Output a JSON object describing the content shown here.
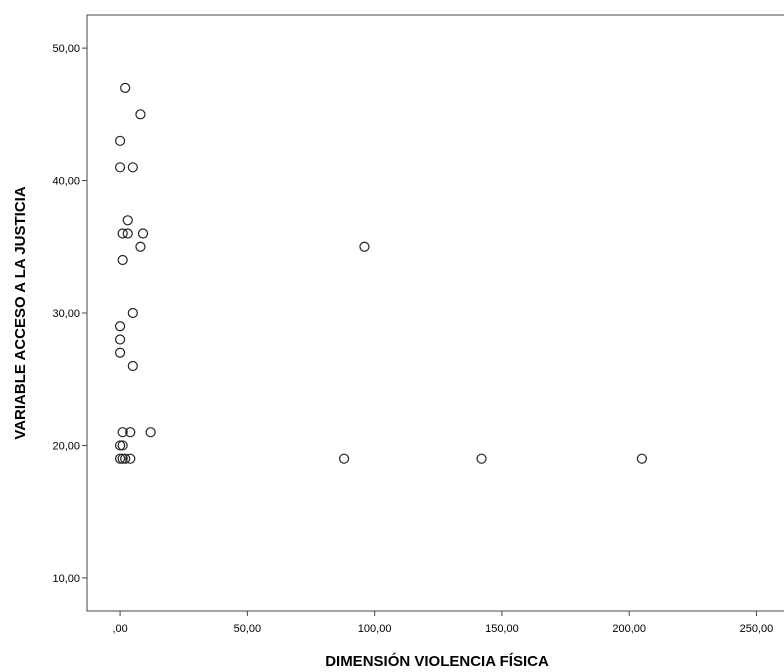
{
  "chart_data": {
    "type": "scatter",
    "xlabel": "DIMENSIÓN VIOLENCIA FÍSICA",
    "ylabel": "VARIABLE ACCESO A LA JUSTICIA",
    "xlim": [
      -13,
      262
    ],
    "ylim": [
      7.5,
      52.5
    ],
    "x_ticks": [
      0,
      50,
      100,
      150,
      200,
      250
    ],
    "x_tick_labels": [
      ",00",
      "50,00",
      "100,00",
      "150,00",
      "200,00",
      "250,00"
    ],
    "y_ticks": [
      10,
      20,
      30,
      40,
      50
    ],
    "y_tick_labels": [
      "10,00",
      "20,00",
      "30,00",
      "40,00",
      "50,00"
    ],
    "grid": false,
    "marker": "open-circle",
    "points": [
      {
        "x": 2,
        "y": 47
      },
      {
        "x": 8,
        "y": 45
      },
      {
        "x": 0,
        "y": 43
      },
      {
        "x": 0,
        "y": 41
      },
      {
        "x": 5,
        "y": 41
      },
      {
        "x": 3,
        "y": 37
      },
      {
        "x": 1,
        "y": 36
      },
      {
        "x": 3,
        "y": 36
      },
      {
        "x": 9,
        "y": 36
      },
      {
        "x": 8,
        "y": 35
      },
      {
        "x": 96,
        "y": 35
      },
      {
        "x": 1,
        "y": 34
      },
      {
        "x": 5,
        "y": 30
      },
      {
        "x": 0,
        "y": 29
      },
      {
        "x": 0,
        "y": 28
      },
      {
        "x": 0,
        "y": 27
      },
      {
        "x": 5,
        "y": 26
      },
      {
        "x": 1,
        "y": 21
      },
      {
        "x": 4,
        "y": 21
      },
      {
        "x": 12,
        "y": 21
      },
      {
        "x": 0,
        "y": 20
      },
      {
        "x": 1,
        "y": 20
      },
      {
        "x": 0,
        "y": 19
      },
      {
        "x": 1,
        "y": 19
      },
      {
        "x": 2,
        "y": 19
      },
      {
        "x": 4,
        "y": 19
      },
      {
        "x": 88,
        "y": 19
      },
      {
        "x": 142,
        "y": 19
      },
      {
        "x": 205,
        "y": 19
      }
    ]
  }
}
